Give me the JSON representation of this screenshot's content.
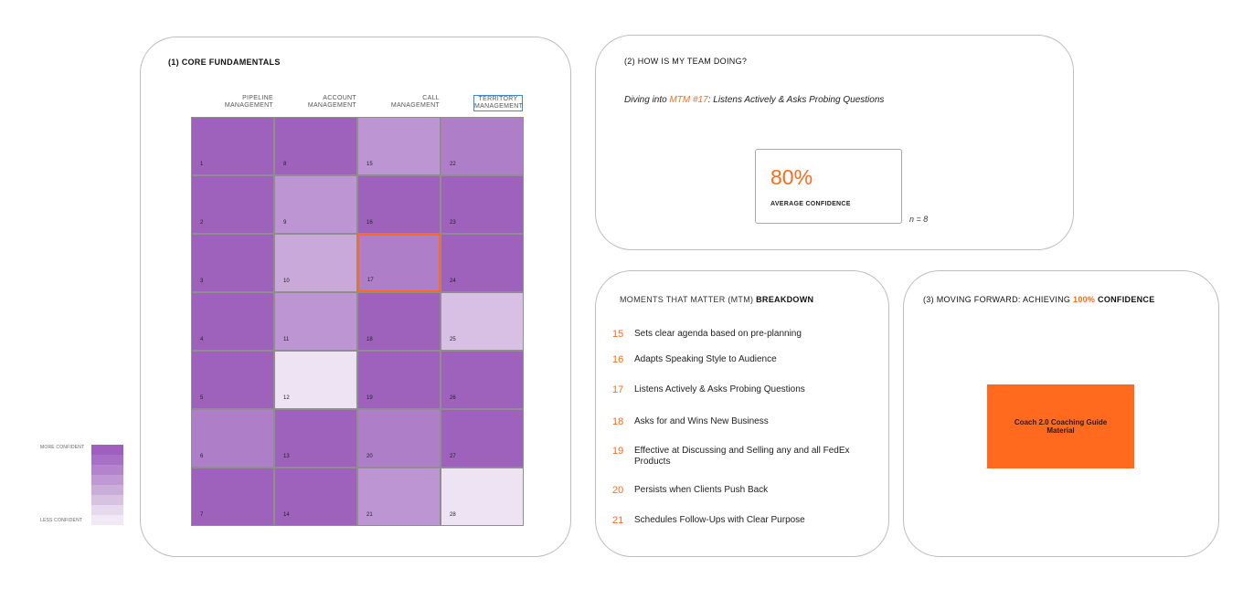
{
  "core": {
    "title": "(1) CORE FUNDAMENTALS",
    "columns": [
      "PIPELINE MANAGEMENT",
      "ACCOUNT MANAGEMENT",
      "CALL MANAGEMENT",
      "TERRITORY MANAGEMENT"
    ],
    "selected_column": "TERRITORY MANAGEMENT",
    "cells": [
      {
        "num": "1",
        "level": 1
      },
      {
        "num": "8",
        "level": 1
      },
      {
        "num": "15",
        "level": 3
      },
      {
        "num": "22",
        "level": 2
      },
      {
        "num": "2",
        "level": 1
      },
      {
        "num": "9",
        "level": 3
      },
      {
        "num": "16",
        "level": 1
      },
      {
        "num": "23",
        "level": 1
      },
      {
        "num": "3",
        "level": 1
      },
      {
        "num": "10",
        "level": 4
      },
      {
        "num": "17",
        "level": 2
      },
      {
        "num": "24",
        "level": 1
      },
      {
        "num": "4",
        "level": 1
      },
      {
        "num": "11",
        "level": 3
      },
      {
        "num": "18",
        "level": 1
      },
      {
        "num": "25",
        "level": 5
      },
      {
        "num": "5",
        "level": 1
      },
      {
        "num": "12",
        "level": 7
      },
      {
        "num": "19",
        "level": 1
      },
      {
        "num": "26",
        "level": 1
      },
      {
        "num": "6",
        "level": 2
      },
      {
        "num": "13",
        "level": 1
      },
      {
        "num": "20",
        "level": 2
      },
      {
        "num": "27",
        "level": 1
      },
      {
        "num": "7",
        "level": 1
      },
      {
        "num": "14",
        "level": 1
      },
      {
        "num": "21",
        "level": 3
      },
      {
        "num": "28",
        "level": 7
      }
    ],
    "selected_cell": "17"
  },
  "legend": {
    "more_label": "MORE CONFIDENT",
    "less_label": "LESS CONFIDENT",
    "colors": [
      "#9e5fbf",
      "#a86fc6",
      "#b384cd",
      "#bf98d4",
      "#cbadda",
      "#d8c2e2",
      "#e6d9ee",
      "#f1eaf6"
    ]
  },
  "palette": [
    "#9e62bd",
    "#af7ec9",
    "#bd95d2",
    "#c8a9da",
    "#d7c0e3",
    "#e2d3ec",
    "#eee3f3"
  ],
  "team": {
    "title": "(2) HOW IS MY TEAM DOING?",
    "diving_prefix": "Diving into ",
    "mtm_ref": "MTM #17",
    "diving_suffix": ": Listens Actively & Asks Probing Questions",
    "percent": "80%",
    "percent_label": "AVERAGE CONFIDENCE",
    "n_label": "n = 8"
  },
  "breakdown": {
    "title_prefix": "MOMENTS THAT MATTER (MTM) ",
    "title_bold": "BREAKDOWN",
    "items": [
      {
        "num": "15",
        "label": "Sets clear agenda based on pre-planning"
      },
      {
        "num": "16",
        "label": "Adapts Speaking Style to Audience"
      },
      {
        "num": "17",
        "label": "Listens Actively & Asks Probing Questions"
      },
      {
        "num": "18",
        "label": "Asks for and Wins New Business"
      },
      {
        "num": "19",
        "label": "Effective at Discussing and Selling any and all FedEx Products"
      },
      {
        "num": "20",
        "label": "Persists when Clients Push Back"
      },
      {
        "num": "21",
        "label": "Schedules Follow-Ups with Clear Purpose"
      }
    ]
  },
  "forward": {
    "title_prefix": "(3) MOVING FORWARD: ACHIEVING ",
    "title_accent": "100%",
    "title_suffix": " CONFIDENCE",
    "button_label": "Coach 2.0 Coaching Guide Material"
  },
  "colors": {
    "accent": "#ff6a1a",
    "selection_blue": "#3b88d8"
  }
}
